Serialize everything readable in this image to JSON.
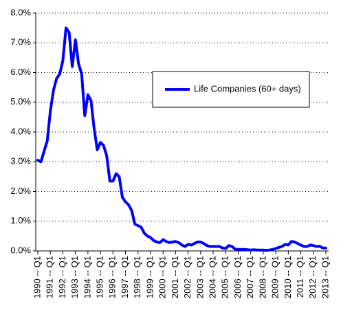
{
  "chart_data": {
    "type": "line",
    "categories": [
      "1990 -- Q1",
      null,
      null,
      null,
      "1991 -- Q1",
      null,
      null,
      null,
      "1992 -- Q1",
      null,
      null,
      null,
      "1993 -- Q1",
      null,
      null,
      null,
      "1994 -- Q1",
      null,
      null,
      null,
      "1995 -- Q1",
      null,
      null,
      null,
      "1996 -- Q1",
      null,
      null,
      null,
      "1997 -- Q1",
      null,
      null,
      null,
      "1998 -- Q1",
      null,
      null,
      null,
      "1999 -- Q1",
      null,
      null,
      null,
      "2000 -- Q1",
      null,
      null,
      null,
      "2001 -- Q1",
      null,
      null,
      null,
      "2002 -- Q1",
      null,
      null,
      null,
      "2003 -- Q1",
      null,
      null,
      null,
      "2004 -- Q1",
      null,
      null,
      null,
      "2005 -- Q1",
      null,
      null,
      null,
      "2006 -- Q1",
      null,
      null,
      null,
      "2007 -- Q1",
      null,
      null,
      null,
      "2008 -- Q1",
      null,
      null,
      null,
      "2009 -- Q1",
      null,
      null,
      null,
      "2010 -- Q1",
      null,
      null,
      null,
      "2011 -- Q1",
      null,
      null,
      null,
      "2012 -- Q1",
      null,
      null,
      null,
      "2013 -- Q1"
    ],
    "series": [
      {
        "name": "Life Companies (60+ days)",
        "color": "#0000ff",
        "values": [
          3.05,
          3.0,
          3.35,
          3.7,
          4.7,
          5.4,
          5.8,
          5.95,
          6.4,
          7.5,
          7.35,
          6.2,
          7.1,
          6.3,
          5.95,
          4.55,
          5.25,
          5.05,
          4.1,
          3.4,
          3.65,
          3.55,
          3.2,
          2.35,
          2.35,
          2.6,
          2.5,
          1.8,
          1.65,
          1.55,
          1.35,
          0.9,
          0.85,
          0.8,
          0.6,
          0.5,
          0.45,
          0.35,
          0.3,
          0.28,
          0.38,
          0.32,
          0.28,
          0.3,
          0.32,
          0.28,
          0.2,
          0.15,
          0.22,
          0.2,
          0.25,
          0.3,
          0.3,
          0.25,
          0.18,
          0.15,
          0.15,
          0.15,
          0.15,
          0.1,
          0.08,
          0.18,
          0.15,
          0.06,
          0.05,
          0.05,
          0.05,
          0.04,
          0.03,
          0.04,
          0.03,
          0.03,
          0.03,
          0.02,
          0.03,
          0.05,
          0.08,
          0.12,
          0.15,
          0.22,
          0.2,
          0.32,
          0.3,
          0.25,
          0.2,
          0.15,
          0.15,
          0.2,
          0.18,
          0.15,
          0.16,
          0.1,
          0.1
        ]
      }
    ],
    "ylim": [
      0,
      8
    ],
    "yticks": [
      {
        "value": 0,
        "label": "0.0%"
      },
      {
        "value": 1,
        "label": "1.0%"
      },
      {
        "value": 2,
        "label": "2.0%"
      },
      {
        "value": 3,
        "label": "3.0%"
      },
      {
        "value": 4,
        "label": "4.0%"
      },
      {
        "value": 5,
        "label": "5.0%"
      },
      {
        "value": 6,
        "label": "6.0%"
      },
      {
        "value": 7,
        "label": "7.0%"
      },
      {
        "value": 8,
        "label": "8.0%"
      }
    ],
    "grid": true
  }
}
